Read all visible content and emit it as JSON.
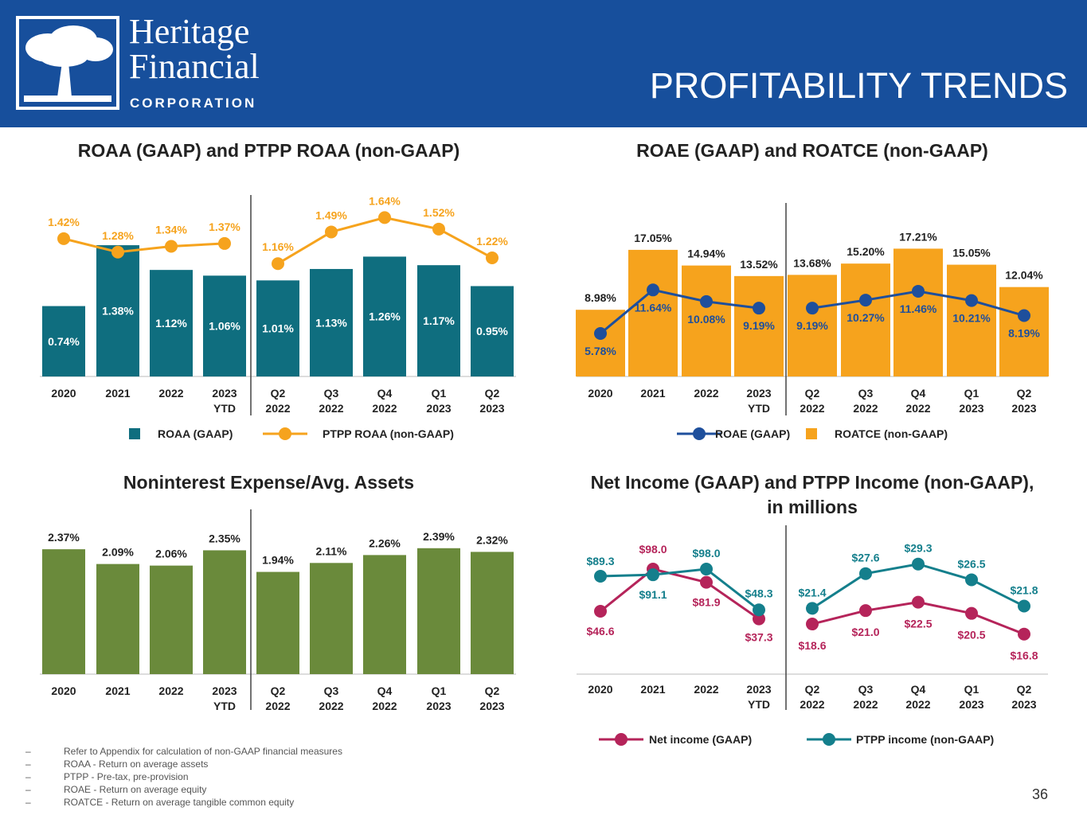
{
  "header": {
    "logo": {
      "name_line1": "Heritage",
      "name_line2": "Financial",
      "corp": "CORPORATION"
    },
    "title": "PROFITABILITY TRENDS"
  },
  "colors": {
    "header": "#174f9c",
    "teal": "#0f6e7f",
    "orange": "#f6a31d",
    "navy": "#1e4f9c",
    "green": "#6a8a3b",
    "crimson": "#b5245a",
    "teal_line": "#147f8c"
  },
  "chart_data": [
    {
      "type": "bar+line",
      "title": "ROAA (GAAP) and PTPP ROAA (non-GAAP)",
      "categories": [
        "2020",
        "2021",
        "2022",
        "2023 YTD",
        "Q2 2022",
        "Q3 2022",
        "Q4 2022",
        "Q1 2023",
        "Q2 2023"
      ],
      "series": [
        {
          "name": "ROAA (GAAP)",
          "type": "bar",
          "color": "#0f6e7f",
          "values": [
            0.74,
            1.38,
            1.12,
            1.06,
            1.01,
            1.13,
            1.26,
            1.17,
            0.95
          ],
          "labels": [
            "0.74%",
            "1.38%",
            "1.12%",
            "1.06%",
            "1.01%",
            "1.13%",
            "1.26%",
            "1.17%",
            "0.95%"
          ]
        },
        {
          "name": "PTPP ROAA (non-GAAP)",
          "type": "line",
          "color": "#f6a31d",
          "values": [
            1.42,
            1.28,
            1.34,
            1.37,
            1.16,
            1.49,
            1.64,
            1.52,
            1.22
          ],
          "labels": [
            "1.42%",
            "1.28%",
            "1.34%",
            "1.37%",
            "1.16%",
            "1.49%",
            "1.64%",
            "1.52%",
            "1.22%"
          ]
        }
      ],
      "legend": "bottom"
    },
    {
      "type": "bar+line",
      "title": "ROAE (GAAP) and ROATCE (non-GAAP)",
      "categories": [
        "2020",
        "2021",
        "2022",
        "2023 YTD",
        "Q2 2022",
        "Q3 2022",
        "Q4 2022",
        "Q1 2023",
        "Q2 2023"
      ],
      "series": [
        {
          "name": "ROAE (GAAP)",
          "type": "line",
          "color": "#1e4f9c",
          "values": [
            5.78,
            11.64,
            10.08,
            9.19,
            9.19,
            10.27,
            11.46,
            10.21,
            8.19
          ],
          "labels": [
            "5.78%",
            "11.64%",
            "10.08%",
            "9.19%",
            "9.19%",
            "10.27%",
            "11.46%",
            "10.21%",
            "8.19%"
          ]
        },
        {
          "name": "ROATCE (non-GAAP)",
          "type": "bar",
          "color": "#f6a31d",
          "values": [
            8.98,
            17.05,
            14.94,
            13.52,
            13.68,
            15.2,
            17.21,
            15.05,
            12.04
          ],
          "labels": [
            "8.98%",
            "17.05%",
            "14.94%",
            "13.52%",
            "13.68%",
            "15.20%",
            "17.21%",
            "15.05%",
            "12.04%"
          ]
        }
      ],
      "legend": "bottom"
    },
    {
      "type": "bar",
      "title": "Noninterest Expense/Avg. Assets",
      "categories": [
        "2020",
        "2021",
        "2022",
        "2023 YTD",
        "Q2 2022",
        "Q3 2022",
        "Q4 2022",
        "Q1 2023",
        "Q2 2023"
      ],
      "series": [
        {
          "type": "bar",
          "color": "#6a8a3b",
          "values": [
            2.37,
            2.09,
            2.06,
            2.35,
            1.94,
            2.11,
            2.26,
            2.39,
            2.32
          ],
          "labels": [
            "2.37%",
            "2.09%",
            "2.06%",
            "2.35%",
            "1.94%",
            "2.11%",
            "2.26%",
            "2.39%",
            "2.32%"
          ]
        }
      ]
    },
    {
      "type": "line",
      "title": "Net Income (GAAP) and PTPP Income (non-GAAP), in millions",
      "categories": [
        "2020",
        "2021",
        "2022",
        "2023 YTD",
        "Q2 2022",
        "Q3 2022",
        "Q4 2022",
        "Q1 2023",
        "Q2 2023"
      ],
      "series": [
        {
          "name": "Net income (GAAP)",
          "type": "line",
          "color": "#b5245a",
          "values": [
            46.6,
            98.0,
            81.9,
            37.3,
            18.6,
            21.0,
            22.5,
            20.5,
            16.8
          ],
          "labels": [
            "$46.6",
            "$98.0",
            "$81.9",
            "$37.3",
            "$18.6",
            "$21.0",
            "$22.5",
            "$20.5",
            "$16.8"
          ]
        },
        {
          "name": "PTPP income (non-GAAP)",
          "type": "line",
          "color": "#147f8c",
          "values": [
            89.3,
            91.1,
            98.0,
            48.3,
            21.4,
            27.6,
            29.3,
            26.5,
            21.8
          ],
          "labels": [
            "$89.3",
            "$91.1",
            "$98.0",
            "$48.3",
            "$21.4",
            "$27.6",
            "$29.3",
            "$26.5",
            "$21.8"
          ]
        }
      ],
      "legend": "bottom"
    }
  ],
  "footnotes": [
    "Refer to Appendix for calculation of non-GAAP financial measures",
    "ROAA - Return on average assets",
    "PTPP - Pre-tax, pre-provision",
    "ROAE - Return on average equity",
    "ROATCE - Return on average tangible common equity"
  ],
  "footnote_dash": "–",
  "page_number": "36"
}
